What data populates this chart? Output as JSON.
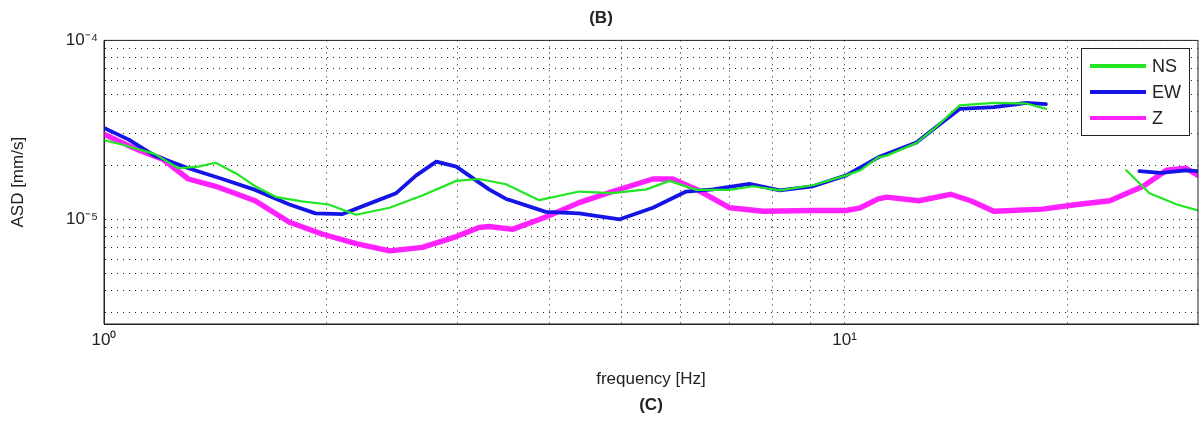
{
  "chart_data": {
    "type": "line",
    "title": "(B)",
    "xlabel": "frequency [Hz]",
    "ylabel": "ASD [mm/s]",
    "annotations": [
      "(C)"
    ],
    "log": "xy",
    "grid": true,
    "legend": "top right",
    "marker": "none",
    "line_style": "solid",
    "xlim": [
      1,
      30
    ],
    "ylim": [
      2.6e-06,
      0.0001
    ],
    "xticks": [
      {
        "value": 1,
        "label": "10⁰"
      },
      {
        "value": 2,
        "label": null
      },
      {
        "value": 3,
        "label": null
      },
      {
        "value": 4,
        "label": null
      },
      {
        "value": 5,
        "label": null
      },
      {
        "value": 6,
        "label": null
      },
      {
        "value": 7,
        "label": null
      },
      {
        "value": 8,
        "label": null
      },
      {
        "value": 9,
        "label": null
      },
      {
        "value": 10,
        "label": "10¹"
      },
      {
        "value": 20,
        "label": null
      }
    ],
    "yticks": [
      {
        "value": 3e-06,
        "label": null
      },
      {
        "value": 4e-06,
        "label": null
      },
      {
        "value": 5e-06,
        "label": null
      },
      {
        "value": 6e-06,
        "label": null
      },
      {
        "value": 7e-06,
        "label": null
      },
      {
        "value": 8e-06,
        "label": null
      },
      {
        "value": 9e-06,
        "label": null
      },
      {
        "value": 1e-05,
        "label": "10⁻⁵"
      },
      {
        "value": 2e-05,
        "label": null
      },
      {
        "value": 3e-05,
        "label": null
      },
      {
        "value": 4e-05,
        "label": null
      },
      {
        "value": 5e-05,
        "label": null
      },
      {
        "value": 6e-05,
        "label": null
      },
      {
        "value": 7e-05,
        "label": null
      },
      {
        "value": 8e-05,
        "label": null
      },
      {
        "value": 9e-05,
        "label": null
      },
      {
        "value": 0.0001,
        "label": "10⁻⁴"
      }
    ],
    "series": [
      {
        "name": "NS",
        "color": "#22e622",
        "x": [
          1.0,
          1.06,
          1.17,
          1.26,
          1.34,
          1.415,
          1.51,
          1.6,
          1.71,
          1.85,
          2.01,
          2.19,
          2.43,
          2.69,
          2.99,
          3.21,
          3.49,
          3.87,
          4.38,
          4.86,
          5.4,
          5.8,
          6.31,
          7.0,
          7.52,
          8.17,
          9.06,
          10.05,
          10.5,
          11.1,
          11.4,
          12.5,
          13.2,
          14.3,
          15.9,
          17.6,
          18.7,
          21,
          24.0,
          25.8,
          28.1,
          30.0
        ],
        "values": [
          2.77e-05,
          2.61e-05,
          2.32e-05,
          1.93e-05,
          1.97e-05,
          2.07e-05,
          1.8e-05,
          1.53e-05,
          1.33e-05,
          1.26e-05,
          1.21e-05,
          1.06e-05,
          1.16e-05,
          1.36e-05,
          1.64e-05,
          1.68e-05,
          1.57e-05,
          1.28e-05,
          1.43e-05,
          1.4e-05,
          1.47e-05,
          1.64e-05,
          1.46e-05,
          1.46e-05,
          1.53e-05,
          1.45e-05,
          1.55e-05,
          1.76e-05,
          1.88e-05,
          2.22e-05,
          2.27e-05,
          2.67e-05,
          3.21e-05,
          4.33e-05,
          4.47e-05,
          4.44e-05,
          4.14e-05,
          null,
          1.88e-05,
          1.4e-05,
          1.21e-05,
          1.12e-05
        ]
      },
      {
        "name": "EW",
        "color": "#1414e6",
        "x": [
          1.0,
          1.08,
          1.17,
          1.3,
          1.445,
          1.6,
          1.78,
          1.93,
          2.1,
          2.3,
          2.48,
          2.64,
          2.81,
          2.99,
          3.31,
          3.49,
          3.95,
          4.38,
          4.97,
          5.51,
          6.11,
          6.64,
          7.44,
          8.17,
          9.06,
          10.05,
          11.1,
          12.5,
          13.2,
          14.3,
          15.9,
          17.6,
          18.7,
          21,
          25.0,
          26.7,
          28.9,
          30.0
        ],
        "values": [
          3.24e-05,
          2.79e-05,
          2.27e-05,
          1.93e-05,
          1.68e-05,
          1.46e-05,
          1.21e-05,
          1.08e-05,
          1.07e-05,
          1.24e-05,
          1.4e-05,
          1.76e-05,
          2.1e-05,
          1.97e-05,
          1.47e-05,
          1.3e-05,
          1.1e-05,
          1.08e-05,
          1e-05,
          1.16e-05,
          1.43e-05,
          1.47e-05,
          1.58e-05,
          1.45e-05,
          1.53e-05,
          1.76e-05,
          2.22e-05,
          2.69e-05,
          3.21e-05,
          4.14e-05,
          4.24e-05,
          4.47e-05,
          4.4e-05,
          null,
          1.86e-05,
          1.82e-05,
          1.88e-05,
          1.86e-05
        ]
      },
      {
        "name": "Z",
        "color": "#ff22ff",
        "x": [
          1.0,
          1.115,
          1.2,
          1.3,
          1.415,
          1.6,
          1.78,
          1.97,
          2.19,
          2.43,
          2.69,
          2.99,
          3.21,
          3.31,
          3.56,
          3.95,
          4.38,
          4.86,
          5.51,
          5.86,
          6.31,
          7.0,
          7.76,
          9.06,
          10.05,
          10.5,
          11.1,
          11.4,
          12.6,
          13.9,
          14.8,
          15.9,
          18.5,
          20.6,
          22.8,
          25.3,
          27.2,
          28.9,
          30.0
        ],
        "values": [
          2.99e-05,
          2.43e-05,
          2.17e-05,
          1.68e-05,
          1.53e-05,
          1.27e-05,
          9.64e-06,
          8.28e-06,
          7.31e-06,
          6.66e-06,
          6.97e-06,
          8.01e-06,
          9e-06,
          9.12e-06,
          8.79e-06,
          1.03e-05,
          1.24e-05,
          1.43e-05,
          1.68e-05,
          1.68e-05,
          1.47e-05,
          1.16e-05,
          1.11e-05,
          1.12e-05,
          1.12e-05,
          1.16e-05,
          1.3e-05,
          1.33e-05,
          1.27e-05,
          1.38e-05,
          1.27e-05,
          1.11e-05,
          1.14e-05,
          1.21e-05,
          1.27e-05,
          1.53e-05,
          1.88e-05,
          1.93e-05,
          1.76e-05
        ]
      }
    ]
  }
}
